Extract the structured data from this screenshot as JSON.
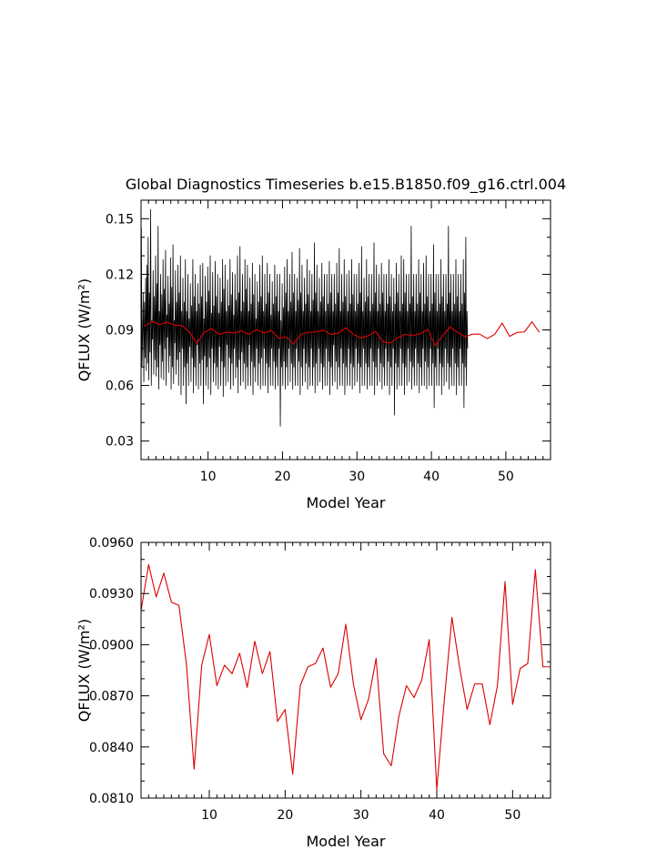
{
  "chart_data": [
    {
      "type": "line",
      "title": "Global Diagnostics Timeseries b.e15.B1850.f09_g16.ctrl.004",
      "xlabel": "Model Year",
      "ylabel": "QFLUX (W/m²)",
      "xlim": [
        1,
        56
      ],
      "ylim": [
        0.02,
        0.16
      ],
      "xticks": [
        10,
        20,
        30,
        40,
        50
      ],
      "yticks": [
        0.03,
        0.06,
        0.09,
        0.12,
        0.15
      ],
      "ytick_labels": [
        "0.03",
        "0.06",
        "0.09",
        "0.12",
        "0.15"
      ],
      "grid": false,
      "series": [
        {
          "color": "#000000",
          "x_start": 1.04,
          "x_step": 0.08333,
          "values": [
            0.145,
            0.07,
            0.088,
            0.11,
            0.062,
            0.105,
            0.075,
            0.118,
            0.068,
            0.125,
            0.072,
            0.14,
            0.063,
            0.11,
            0.078,
            0.155,
            0.06,
            0.095,
            0.085,
            0.122,
            0.066,
            0.108,
            0.074,
            0.13,
            0.065,
            0.115,
            0.07,
            0.146,
            0.058,
            0.1,
            0.082,
            0.12,
            0.064,
            0.109,
            0.073,
            0.128,
            0.063,
            0.112,
            0.08,
            0.133,
            0.06,
            0.098,
            0.086,
            0.119,
            0.067,
            0.104,
            0.076,
            0.129,
            0.058,
            0.113,
            0.07,
            0.136,
            0.061,
            0.095,
            0.083,
            0.122,
            0.066,
            0.105,
            0.074,
            0.125,
            0.06,
            0.11,
            0.078,
            0.13,
            0.055,
            0.1,
            0.08,
            0.118,
            0.06,
            0.105,
            0.07,
            0.128,
            0.05,
            0.1,
            0.072,
            0.12,
            0.06,
            0.096,
            0.081,
            0.115,
            0.062,
            0.103,
            0.075,
            0.128,
            0.056,
            0.108,
            0.07,
            0.12,
            0.06,
            0.1,
            0.082,
            0.115,
            0.058,
            0.104,
            0.072,
            0.125,
            0.06,
            0.108,
            0.074,
            0.126,
            0.05,
            0.096,
            0.076,
            0.119,
            0.06,
            0.105,
            0.07,
            0.124,
            0.058,
            0.111,
            0.075,
            0.13,
            0.055,
            0.099,
            0.08,
            0.121,
            0.062,
            0.103,
            0.072,
            0.127,
            0.06,
            0.108,
            0.07,
            0.12,
            0.058,
            0.099,
            0.081,
            0.118,
            0.06,
            0.105,
            0.073,
            0.128,
            0.054,
            0.112,
            0.07,
            0.125,
            0.06,
            0.1,
            0.082,
            0.117,
            0.062,
            0.103,
            0.075,
            0.128,
            0.058,
            0.109,
            0.072,
            0.121,
            0.06,
            0.098,
            0.08,
            0.12,
            0.064,
            0.106,
            0.07,
            0.13,
            0.056,
            0.11,
            0.074,
            0.135,
            0.06,
            0.1,
            0.078,
            0.12,
            0.062,
            0.105,
            0.072,
            0.128,
            0.058,
            0.112,
            0.07,
            0.125,
            0.06,
            0.1,
            0.082,
            0.118,
            0.06,
            0.104,
            0.073,
            0.126,
            0.055,
            0.109,
            0.07,
            0.12,
            0.062,
            0.096,
            0.08,
            0.116,
            0.06,
            0.105,
            0.072,
            0.125,
            0.058,
            0.108,
            0.075,
            0.13,
            0.06,
            0.1,
            0.08,
            0.12,
            0.06,
            0.104,
            0.072,
            0.126,
            0.056,
            0.11,
            0.07,
            0.12,
            0.06,
            0.098,
            0.08,
            0.116,
            0.06,
            0.104,
            0.073,
            0.125,
            0.058,
            0.108,
            0.07,
            0.12,
            0.06,
            0.1,
            0.08,
            0.12,
            0.038,
            0.095,
            0.07,
            0.115,
            0.06,
            0.102,
            0.073,
            0.124,
            0.058,
            0.11,
            0.07,
            0.128,
            0.06,
            0.1,
            0.08,
            0.12,
            0.062,
            0.105,
            0.072,
            0.132,
            0.058,
            0.11,
            0.07,
            0.12,
            0.06,
            0.1,
            0.08,
            0.118,
            0.06,
            0.106,
            0.073,
            0.134,
            0.055,
            0.11,
            0.07,
            0.125,
            0.06,
            0.1,
            0.08,
            0.118,
            0.062,
            0.104,
            0.072,
            0.128,
            0.058,
            0.109,
            0.07,
            0.122,
            0.06,
            0.1,
            0.08,
            0.12,
            0.06,
            0.106,
            0.07,
            0.137,
            0.056,
            0.11,
            0.072,
            0.125,
            0.06,
            0.1,
            0.08,
            0.118,
            0.062,
            0.105,
            0.072,
            0.126,
            0.058,
            0.108,
            0.07,
            0.12,
            0.06,
            0.1,
            0.08,
            0.12,
            0.06,
            0.104,
            0.073,
            0.127,
            0.055,
            0.11,
            0.07,
            0.12,
            0.06,
            0.1,
            0.082,
            0.12,
            0.062,
            0.104,
            0.073,
            0.126,
            0.058,
            0.11,
            0.07,
            0.134,
            0.06,
            0.1,
            0.08,
            0.12,
            0.06,
            0.105,
            0.072,
            0.128,
            0.055,
            0.108,
            0.07,
            0.12,
            0.06,
            0.1,
            0.08,
            0.122,
            0.06,
            0.104,
            0.072,
            0.128,
            0.058,
            0.109,
            0.07,
            0.12,
            0.06,
            0.1,
            0.08,
            0.12,
            0.062,
            0.104,
            0.072,
            0.126,
            0.056,
            0.11,
            0.07,
            0.135,
            0.06,
            0.1,
            0.08,
            0.118,
            0.06,
            0.105,
            0.072,
            0.128,
            0.058,
            0.108,
            0.07,
            0.12,
            0.06,
            0.1,
            0.08,
            0.12,
            0.06,
            0.104,
            0.073,
            0.137,
            0.055,
            0.11,
            0.07,
            0.125,
            0.06,
            0.1,
            0.08,
            0.12,
            0.062,
            0.104,
            0.072,
            0.126,
            0.058,
            0.11,
            0.07,
            0.12,
            0.06,
            0.1,
            0.08,
            0.12,
            0.06,
            0.104,
            0.073,
            0.128,
            0.055,
            0.108,
            0.07,
            0.12,
            0.06,
            0.1,
            0.08,
            0.118,
            0.044,
            0.104,
            0.072,
            0.126,
            0.058,
            0.11,
            0.07,
            0.12,
            0.06,
            0.1,
            0.08,
            0.13,
            0.06,
            0.104,
            0.072,
            0.128,
            0.055,
            0.11,
            0.07,
            0.12,
            0.06,
            0.1,
            0.08,
            0.12,
            0.062,
            0.104,
            0.073,
            0.146,
            0.058,
            0.108,
            0.07,
            0.12,
            0.06,
            0.1,
            0.08,
            0.12,
            0.06,
            0.104,
            0.072,
            0.128,
            0.056,
            0.11,
            0.07,
            0.12,
            0.06,
            0.1,
            0.08,
            0.126,
            0.06,
            0.104,
            0.073,
            0.13,
            0.058,
            0.108,
            0.07,
            0.12,
            0.06,
            0.1,
            0.08,
            0.12,
            0.06,
            0.104,
            0.072,
            0.136,
            0.048,
            0.11,
            0.07,
            0.12,
            0.06,
            0.1,
            0.08,
            0.12,
            0.06,
            0.104,
            0.072,
            0.128,
            0.055,
            0.108,
            0.07,
            0.12,
            0.06,
            0.1,
            0.08,
            0.12,
            0.062,
            0.104,
            0.072,
            0.146,
            0.058,
            0.11,
            0.07,
            0.12,
            0.06,
            0.1,
            0.08,
            0.12,
            0.06,
            0.104,
            0.072,
            0.128,
            0.055,
            0.108,
            0.07,
            0.12,
            0.06,
            0.1,
            0.08,
            0.12,
            0.06,
            0.104,
            0.072,
            0.128,
            0.048,
            0.11,
            0.07,
            0.14,
            0.06,
            0.1,
            0.08
          ]
        },
        {
          "color": "#dd0000",
          "x": [
            1.5,
            2.5,
            3.5,
            4.5,
            5.5,
            6.5,
            7.5,
            8.5,
            9.5,
            10.5,
            11.5,
            12.5,
            13.5,
            14.5,
            15.5,
            16.5,
            17.5,
            18.5,
            19.5,
            20.5,
            21.5,
            22.5,
            23.5,
            24.5,
            25.5,
            26.5,
            27.5,
            28.5,
            29.5,
            30.5,
            31.5,
            32.5,
            33.5,
            34.5,
            35.5,
            36.5,
            37.5,
            38.5,
            39.5,
            40.5,
            41.5,
            42.5,
            43.5,
            44.5,
            45.5,
            46.5,
            47.5,
            48.5,
            49.5,
            50.5,
            51.5,
            52.5,
            53.5,
            54.5
          ],
          "values": [
            0.092,
            0.0947,
            0.0928,
            0.0942,
            0.0925,
            0.0923,
            0.0888,
            0.0827,
            0.0888,
            0.0906,
            0.0876,
            0.0888,
            0.0883,
            0.0895,
            0.0875,
            0.0902,
            0.0883,
            0.0896,
            0.0855,
            0.0862,
            0.0824,
            0.0876,
            0.0887,
            0.0889,
            0.0898,
            0.0875,
            0.0883,
            0.0912,
            0.0877,
            0.0856,
            0.0868,
            0.0892,
            0.0836,
            0.0829,
            0.0858,
            0.0876,
            0.0869,
            0.0879,
            0.0903,
            0.0815,
            0.0868,
            0.0916,
            0.0887,
            0.0862,
            0.0877,
            0.0877,
            0.0853,
            0.0876,
            0.0937,
            0.0865,
            0.0886,
            0.0889,
            0.0944,
            0.0887
          ]
        }
      ]
    },
    {
      "type": "line",
      "title": "",
      "xlabel": "Model Year",
      "ylabel": "QFLUX (W/m²)",
      "xlim": [
        1,
        55
      ],
      "ylim": [
        0.081,
        0.096
      ],
      "xticks": [
        10,
        20,
        30,
        40,
        50
      ],
      "yticks": [
        0.081,
        0.084,
        0.087,
        0.09,
        0.093,
        0.096
      ],
      "ytick_labels": [
        "0.0810",
        "0.0840",
        "0.0870",
        "0.0900",
        "0.0930",
        "0.0960"
      ],
      "grid": false,
      "series": [
        {
          "color": "#dd0000",
          "x": [
            1,
            2,
            3,
            4,
            5,
            6,
            7,
            8,
            9,
            10,
            11,
            12,
            13,
            14,
            15,
            16,
            17,
            18,
            19,
            20,
            21,
            22,
            23,
            24,
            25,
            26,
            27,
            28,
            29,
            30,
            31,
            32,
            33,
            34,
            35,
            36,
            37,
            38,
            39,
            40,
            41,
            42,
            43,
            44,
            45,
            46,
            47,
            48,
            49,
            50,
            51,
            52,
            53,
            54,
            55
          ],
          "values": [
            0.092,
            0.0947,
            0.0928,
            0.0942,
            0.0925,
            0.0923,
            0.0888,
            0.0827,
            0.0888,
            0.0906,
            0.0876,
            0.0888,
            0.0883,
            0.0895,
            0.0875,
            0.0902,
            0.0883,
            0.0896,
            0.0855,
            0.0862,
            0.0824,
            0.0876,
            0.0887,
            0.0889,
            0.0898,
            0.0875,
            0.0883,
            0.0912,
            0.0877,
            0.0856,
            0.0868,
            0.0892,
            0.0836,
            0.0829,
            0.0858,
            0.0876,
            0.0869,
            0.0879,
            0.0903,
            0.0815,
            0.0868,
            0.0916,
            0.0887,
            0.0862,
            0.0877,
            0.0877,
            0.0853,
            0.0876,
            0.0937,
            0.0865,
            0.0886,
            0.0889,
            0.0944,
            0.0887,
            0.0887
          ]
        }
      ]
    }
  ]
}
